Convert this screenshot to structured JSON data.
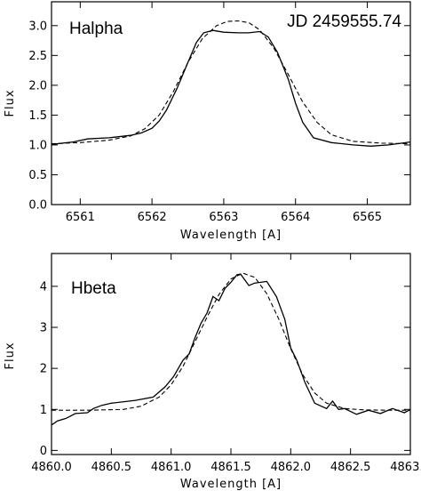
{
  "chart_data": [
    {
      "type": "line",
      "annotations": [
        "Halpha",
        "JD 2459555.74"
      ],
      "xlabel": "Wavelength [A]",
      "ylabel": "Flux",
      "xlim": [
        6560.6,
        6565.6
      ],
      "ylim": [
        0.0,
        3.4
      ],
      "xticks": [
        "6561",
        "6562",
        "6563",
        "6564",
        "6565"
      ],
      "yticks": [
        "0.0",
        "0.5",
        "1.0",
        "1.5",
        "2.0",
        "2.5",
        "3.0"
      ],
      "series": [
        {
          "style": "solid",
          "x": [
            6560.6,
            6560.9,
            6561.1,
            6561.4,
            6561.7,
            6561.85,
            6562.0,
            6562.1,
            6562.2,
            6562.35,
            6562.5,
            6562.62,
            6562.72,
            6562.85,
            6563.0,
            6563.2,
            6563.35,
            6563.5,
            6563.62,
            6563.75,
            6563.9,
            6564.0,
            6564.1,
            6564.25,
            6564.5,
            6564.8,
            6565.05,
            6565.3,
            6565.6
          ],
          "values": [
            1.01,
            1.05,
            1.1,
            1.12,
            1.16,
            1.2,
            1.28,
            1.4,
            1.58,
            1.95,
            2.38,
            2.72,
            2.88,
            2.92,
            2.89,
            2.88,
            2.88,
            2.9,
            2.81,
            2.55,
            2.1,
            1.7,
            1.38,
            1.12,
            1.04,
            1.0,
            0.98,
            1.0,
            1.05
          ]
        },
        {
          "style": "dashed",
          "x": [
            6560.6,
            6561.0,
            6561.4,
            6561.7,
            6561.9,
            6562.1,
            6562.3,
            6562.5,
            6562.7,
            6562.9,
            6563.05,
            6563.2,
            6563.35,
            6563.5,
            6563.7,
            6563.9,
            6564.1,
            6564.3,
            6564.5,
            6564.8,
            6565.2,
            6565.6
          ],
          "values": [
            1.02,
            1.04,
            1.08,
            1.15,
            1.27,
            1.5,
            1.9,
            2.38,
            2.78,
            3.0,
            3.07,
            3.08,
            3.05,
            2.93,
            2.62,
            2.18,
            1.72,
            1.38,
            1.17,
            1.06,
            1.03,
            1.02
          ]
        }
      ]
    },
    {
      "type": "line",
      "annotations": [
        "Hbeta"
      ],
      "xlabel": "Wavelength [A]",
      "ylabel": "Flux",
      "xlim": [
        4860.0,
        4863.0
      ],
      "ylim": [
        -0.1,
        4.8
      ],
      "xticks": [
        "4860.0",
        "4860.5",
        "4861.0",
        "4861.5",
        "4862.0",
        "4862.5",
        "4863.0"
      ],
      "yticks": [
        "0",
        "1",
        "2",
        "3",
        "4"
      ],
      "series": [
        {
          "style": "solid",
          "x": [
            4860.0,
            4860.05,
            4860.12,
            4860.2,
            4860.3,
            4860.35,
            4860.42,
            4860.5,
            4860.7,
            4860.85,
            4860.95,
            4861.02,
            4861.1,
            4861.15,
            4861.2,
            4861.25,
            4861.3,
            4861.35,
            4861.4,
            4861.45,
            4861.5,
            4861.55,
            4861.58,
            4861.65,
            4861.7,
            4861.8,
            4861.88,
            4861.95,
            4862.0,
            4862.05,
            4862.12,
            4862.2,
            4862.3,
            4862.35,
            4862.4,
            4862.45,
            4862.55,
            4862.65,
            4862.75,
            4862.85,
            4862.95,
            4863.0
          ],
          "values": [
            0.62,
            0.72,
            0.78,
            0.9,
            0.92,
            1.02,
            1.1,
            1.15,
            1.22,
            1.3,
            1.55,
            1.8,
            2.2,
            2.35,
            2.75,
            3.1,
            3.35,
            3.75,
            3.65,
            3.95,
            4.1,
            4.28,
            4.3,
            4.02,
            4.08,
            4.12,
            3.75,
            3.2,
            2.5,
            2.2,
            1.65,
            1.15,
            1.02,
            1.2,
            1.0,
            1.02,
            0.88,
            0.98,
            0.9,
            1.02,
            0.92,
            1.0
          ]
        },
        {
          "style": "dashed",
          "x": [
            4860.0,
            4860.3,
            4860.6,
            4860.75,
            4860.9,
            4861.0,
            4861.1,
            4861.2,
            4861.3,
            4861.4,
            4861.5,
            4861.6,
            4861.7,
            4861.8,
            4861.9,
            4862.0,
            4862.1,
            4862.2,
            4862.3,
            4862.45,
            4862.6,
            4862.8,
            4863.0
          ],
          "values": [
            0.98,
            0.98,
            1.0,
            1.08,
            1.3,
            1.6,
            2.05,
            2.65,
            3.25,
            3.8,
            4.18,
            4.32,
            4.22,
            3.82,
            3.2,
            2.48,
            1.85,
            1.4,
            1.15,
            1.02,
            0.99,
            0.98,
            0.98
          ]
        }
      ]
    }
  ]
}
